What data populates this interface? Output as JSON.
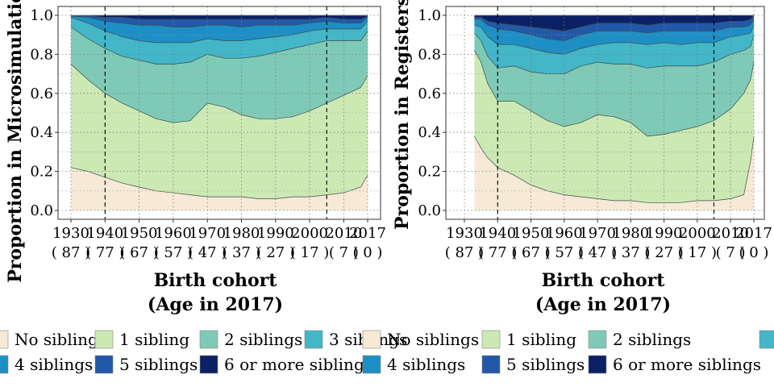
{
  "legend": {
    "categories": [
      "No siblings",
      "1 sibling",
      "2 siblings",
      "3 siblings",
      "4 siblings",
      "5 siblings",
      "6 or more siblings"
    ],
    "colors": [
      "#f6e9d6",
      "#cce9b4",
      "#7fcab6",
      "#43b6c8",
      "#1d8fc4",
      "#2159a8",
      "#0b2065"
    ]
  },
  "chart_data": [
    {
      "type": "area",
      "title": "",
      "xlabel": "Birth cohort\n(Age in 2017)",
      "xlabel_lines": [
        "Birth cohort",
        "(Age in 2017)"
      ],
      "ylabel": "Proportion in Microsimulation",
      "xlim": [
        1930,
        2017
      ],
      "ylim": [
        0,
        1.0
      ],
      "x_ticks": [
        1930,
        1940,
        1950,
        1960,
        1970,
        1980,
        1990,
        2000,
        2010,
        2017
      ],
      "x_tick_labels": [
        "1930",
        "1940",
        "1950",
        "1960",
        "1970",
        "1980",
        "1990",
        "2000",
        "2010",
        "2017"
      ],
      "x_tick_age_labels": [
        "( 87 )",
        "( 77 )",
        "( 67 )",
        "( 57 )",
        "( 47 )",
        "( 37 )",
        "( 27 )",
        "( 17 )",
        "( 7 )",
        "( 0 )"
      ],
      "y_ticks": [
        0.0,
        0.2,
        0.4,
        0.6,
        0.8,
        1.0
      ],
      "y_tick_labels": [
        "0.0",
        "0.2",
        "0.4",
        "0.6",
        "0.8",
        "1.0"
      ],
      "vlines": [
        1940,
        2005
      ],
      "grid": true,
      "stacked": true,
      "x": [
        1930,
        1935,
        1940,
        1945,
        1950,
        1955,
        1960,
        1965,
        1970,
        1975,
        1980,
        1985,
        1990,
        1995,
        2000,
        2005,
        2010,
        2015,
        2017
      ],
      "series": [
        {
          "name": "No siblings",
          "values": [
            0.22,
            0.2,
            0.17,
            0.14,
            0.12,
            0.1,
            0.09,
            0.08,
            0.07,
            0.07,
            0.07,
            0.06,
            0.06,
            0.07,
            0.07,
            0.08,
            0.09,
            0.12,
            0.18
          ]
        },
        {
          "name": "1 sibling",
          "values": [
            0.53,
            0.47,
            0.43,
            0.41,
            0.39,
            0.37,
            0.36,
            0.38,
            0.48,
            0.46,
            0.42,
            0.41,
            0.41,
            0.41,
            0.44,
            0.47,
            0.5,
            0.51,
            0.51
          ]
        },
        {
          "name": "2 siblings",
          "values": [
            0.19,
            0.21,
            0.23,
            0.24,
            0.26,
            0.28,
            0.3,
            0.3,
            0.25,
            0.25,
            0.29,
            0.32,
            0.34,
            0.35,
            0.34,
            0.32,
            0.28,
            0.24,
            0.23
          ]
        },
        {
          "name": "3 siblings",
          "values": [
            0.05,
            0.08,
            0.09,
            0.1,
            0.1,
            0.11,
            0.11,
            0.1,
            0.08,
            0.09,
            0.09,
            0.09,
            0.08,
            0.07,
            0.07,
            0.06,
            0.06,
            0.06,
            0.05
          ]
        },
        {
          "name": "4 siblings",
          "values": [
            0.005,
            0.03,
            0.05,
            0.07,
            0.08,
            0.09,
            0.08,
            0.08,
            0.07,
            0.08,
            0.07,
            0.07,
            0.06,
            0.05,
            0.04,
            0.04,
            0.03,
            0.03,
            0.02
          ]
        },
        {
          "name": "5 siblings",
          "values": [
            0.003,
            0.008,
            0.02,
            0.03,
            0.03,
            0.03,
            0.04,
            0.04,
            0.03,
            0.03,
            0.04,
            0.03,
            0.03,
            0.03,
            0.02,
            0.02,
            0.02,
            0.02,
            0.005
          ]
        },
        {
          "name": "6 or more siblings",
          "values": [
            0.002,
            0.002,
            0.01,
            0.01,
            0.02,
            0.02,
            0.02,
            0.02,
            0.02,
            0.02,
            0.02,
            0.02,
            0.02,
            0.02,
            0.02,
            0.01,
            0.02,
            0.02,
            0.005
          ]
        }
      ]
    },
    {
      "type": "area",
      "title": "",
      "xlabel": "Birth cohort\n(Age in 2017)",
      "xlabel_lines": [
        "Birth cohort",
        "(Age in 2017)"
      ],
      "ylabel": "Proportion in Registers",
      "xlim": [
        1930,
        2017
      ],
      "ylim": [
        0,
        1.0
      ],
      "x_ticks": [
        1930,
        1940,
        1950,
        1960,
        1970,
        1980,
        1990,
        2000,
        2010,
        2017
      ],
      "x_tick_labels": [
        "1930",
        "1940",
        "1950",
        "1960",
        "1970",
        "1980",
        "1990",
        "2000",
        "2010",
        "2017"
      ],
      "x_tick_age_labels": [
        "( 87 )",
        "( 77 )",
        "( 67 )",
        "( 57 )",
        "( 47 )",
        "( 37 )",
        "( 27 )",
        "( 17 )",
        "( 7 )",
        "( 0 )"
      ],
      "y_ticks": [
        0.0,
        0.2,
        0.4,
        0.6,
        0.8,
        1.0
      ],
      "y_tick_labels": [
        "0.0",
        "0.2",
        "0.4",
        "0.6",
        "0.8",
        "1.0"
      ],
      "vlines": [
        1940,
        2005
      ],
      "grid": true,
      "stacked": true,
      "x": [
        1933,
        1935,
        1937,
        1940,
        1945,
        1950,
        1955,
        1960,
        1965,
        1970,
        1975,
        1980,
        1985,
        1990,
        1995,
        2000,
        2005,
        2010,
        2014,
        2016,
        2017
      ],
      "series": [
        {
          "name": "No siblings",
          "values": [
            0.38,
            0.32,
            0.27,
            0.22,
            0.18,
            0.13,
            0.1,
            0.08,
            0.07,
            0.06,
            0.05,
            0.05,
            0.04,
            0.04,
            0.04,
            0.05,
            0.05,
            0.06,
            0.08,
            0.25,
            0.38
          ]
        },
        {
          "name": "1 sibling",
          "values": [
            0.44,
            0.44,
            0.38,
            0.34,
            0.38,
            0.38,
            0.36,
            0.35,
            0.38,
            0.43,
            0.43,
            0.4,
            0.34,
            0.35,
            0.37,
            0.38,
            0.41,
            0.46,
            0.52,
            0.42,
            0.38
          ]
        },
        {
          "name": "2 siblings",
          "values": [
            0.09,
            0.11,
            0.14,
            0.17,
            0.18,
            0.2,
            0.24,
            0.27,
            0.29,
            0.27,
            0.27,
            0.3,
            0.35,
            0.35,
            0.33,
            0.31,
            0.3,
            0.28,
            0.22,
            0.17,
            0.14
          ]
        },
        {
          "name": "3 siblings",
          "values": [
            0.04,
            0.07,
            0.1,
            0.12,
            0.11,
            0.12,
            0.11,
            0.1,
            0.09,
            0.09,
            0.11,
            0.11,
            0.12,
            0.12,
            0.11,
            0.12,
            0.1,
            0.09,
            0.08,
            0.07,
            0.05
          ]
        },
        {
          "name": "4 siblings",
          "values": [
            0.03,
            0.04,
            0.06,
            0.08,
            0.07,
            0.07,
            0.07,
            0.07,
            0.07,
            0.07,
            0.06,
            0.06,
            0.06,
            0.06,
            0.07,
            0.06,
            0.06,
            0.05,
            0.04,
            0.04,
            0.03
          ]
        },
        {
          "name": "5 siblings",
          "values": [
            0.01,
            0.01,
            0.02,
            0.03,
            0.03,
            0.04,
            0.05,
            0.05,
            0.04,
            0.04,
            0.04,
            0.04,
            0.04,
            0.04,
            0.04,
            0.04,
            0.04,
            0.03,
            0.03,
            0.03,
            0.02
          ]
        },
        {
          "name": "6 or more siblings",
          "values": [
            0.01,
            0.01,
            0.03,
            0.04,
            0.05,
            0.06,
            0.07,
            0.08,
            0.06,
            0.04,
            0.04,
            0.04,
            0.05,
            0.04,
            0.04,
            0.04,
            0.04,
            0.03,
            0.03,
            0.02,
            0.0
          ]
        }
      ]
    }
  ]
}
